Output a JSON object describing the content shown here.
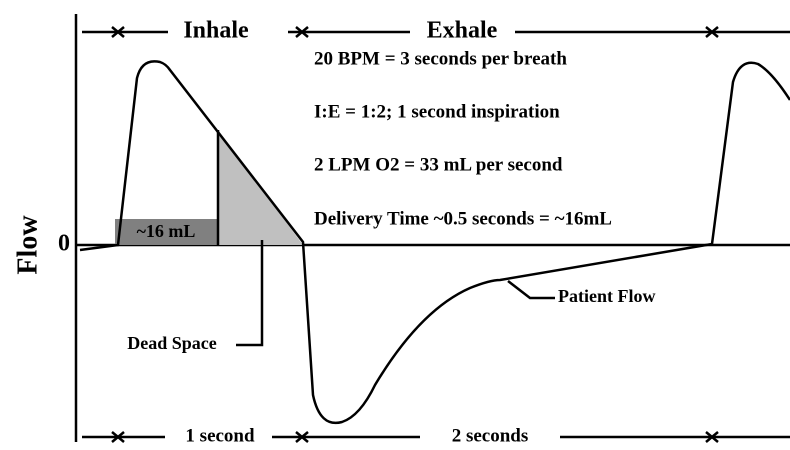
{
  "phases": {
    "inhale": "Inhale",
    "exhale": "Exhale"
  },
  "notes": [
    "20 BPM = 3 seconds per breath",
    "I:E = 1:2; 1 second inspiration",
    "2 LPM O2 = 33 mL per second",
    "Delivery Time ~0.5 seconds = ~16mL"
  ],
  "axis": {
    "label": "Flow",
    "zero": "0"
  },
  "labels": {
    "volume": "~16 mL",
    "dead_space": "Dead Space",
    "patient_flow": "Patient Flow"
  },
  "durations": {
    "inhale": "1 second",
    "exhale": "2 seconds"
  }
}
